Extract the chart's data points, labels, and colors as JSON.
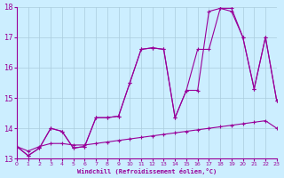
{
  "xlabel": "Windchill (Refroidissement éolien,°C)",
  "bg_color": "#cceeff",
  "grid_color": "#aaccdd",
  "line_color": "#990099",
  "xlim": [
    0,
    23
  ],
  "ylim": [
    13,
    18
  ],
  "xticks": [
    0,
    1,
    2,
    3,
    4,
    5,
    6,
    7,
    8,
    9,
    10,
    11,
    12,
    13,
    14,
    15,
    16,
    17,
    18,
    19,
    20,
    21,
    22,
    23
  ],
  "yticks": [
    13,
    14,
    15,
    16,
    17,
    18
  ],
  "line1_x": [
    0,
    1,
    2,
    3,
    4,
    5,
    6,
    7,
    8,
    9,
    10,
    11,
    12,
    13,
    14,
    15,
    16,
    17,
    18,
    19,
    20,
    21,
    22,
    23
  ],
  "line1_y": [
    13.4,
    13.25,
    13.4,
    13.5,
    13.5,
    13.45,
    13.45,
    13.5,
    13.55,
    13.6,
    13.65,
    13.7,
    13.75,
    13.8,
    13.85,
    13.9,
    13.95,
    14.0,
    14.05,
    14.1,
    14.15,
    14.2,
    14.25,
    14.0
  ],
  "line2_x": [
    0,
    1,
    2,
    3,
    4,
    5,
    6,
    7,
    8,
    9,
    10,
    11,
    12,
    13,
    14,
    15,
    16,
    17,
    18,
    19,
    20,
    21,
    22,
    23
  ],
  "line2_y": [
    13.4,
    13.1,
    13.35,
    14.0,
    13.9,
    13.35,
    13.4,
    14.35,
    14.35,
    14.4,
    15.5,
    16.6,
    16.65,
    16.6,
    14.35,
    15.25,
    16.6,
    16.6,
    17.95,
    17.85,
    17.0,
    15.3,
    17.0,
    14.9
  ],
  "line3_x": [
    0,
    1,
    2,
    3,
    4,
    5,
    6,
    7,
    8,
    9,
    10,
    11,
    12,
    13,
    14,
    15,
    16,
    17,
    18,
    19,
    20,
    21,
    22,
    23
  ],
  "line3_y": [
    13.4,
    13.1,
    13.35,
    14.0,
    13.9,
    13.35,
    13.4,
    14.35,
    14.35,
    14.4,
    15.5,
    16.6,
    16.65,
    16.6,
    14.35,
    15.25,
    15.25,
    17.85,
    17.95,
    17.95,
    17.0,
    15.3,
    17.0,
    14.9
  ]
}
